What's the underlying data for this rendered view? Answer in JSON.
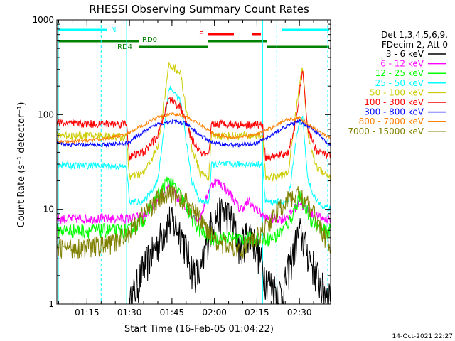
{
  "chart_data": {
    "type": "line",
    "title": "RHESSI Observing Summary Count Rates",
    "xlabel": "Start Time (16-Feb-05 01:04:22)",
    "ylabel": "Count Rate (s⁻¹ detector⁻¹)",
    "yscale": "log",
    "ylim": [
      1,
      1000
    ],
    "xlim": [
      "01:04:22",
      "02:41:00"
    ],
    "x_ticks": [
      "01:15",
      "01:30",
      "01:45",
      "02:00",
      "02:15",
      "02:30"
    ],
    "y_ticks": [
      "1",
      "10",
      "100",
      "1000"
    ],
    "timestamp": "14-Oct-2021 22:27",
    "legend_header": [
      "Det 1,3,4,5,6,9,",
      "FDecim 2, Att 0"
    ],
    "legend_placement": "right",
    "flags": {
      "N_label": "N",
      "F_label": "F",
      "RD0_label": "RD0",
      "RD4_label": "RD4",
      "night_color": "#00ffff",
      "flare_color": "#ff0000",
      "decim_color": "#008000"
    },
    "series": [
      {
        "name": "3 - 6 keV",
        "color": "#000000",
        "x": [
          "01:04:22",
          "01:20",
          "01:25",
          "01:30",
          "01:35",
          "01:40",
          "01:44",
          "01:48",
          "01:52",
          "01:55",
          "01:58",
          "02:00",
          "02:03",
          "02:06",
          "02:09",
          "02:12",
          "02:15",
          "02:18",
          "02:21",
          "02:24",
          "02:27",
          "02:30",
          "02:34",
          "02:38",
          "02:41"
        ],
        "y": [
          null,
          null,
          null,
          1.0,
          2.5,
          4.5,
          8,
          6,
          2.5,
          2.0,
          6,
          8,
          10,
          8,
          4,
          6,
          4,
          2.0,
          1.5,
          1.3,
          3,
          6,
          3,
          1.5,
          1.3
        ]
      },
      {
        "name": "6 - 12 keV",
        "color": "#ff00ff",
        "x": [
          "01:04:22",
          "01:15",
          "01:25",
          "01:30",
          "01:35",
          "01:40",
          "01:44",
          "01:48",
          "01:52",
          "01:55",
          "01:58",
          "02:00",
          "02:03",
          "02:06",
          "02:09",
          "02:12",
          "02:15",
          "02:18",
          "02:21",
          "02:24",
          "02:27",
          "02:30",
          "02:34",
          "02:38",
          "02:41"
        ],
        "y": [
          8,
          8,
          8,
          8,
          8.5,
          12,
          18,
          12,
          9,
          8,
          16,
          20,
          18,
          14,
          10,
          12,
          10,
          8,
          8,
          8,
          9,
          12,
          9,
          8,
          8
        ]
      },
      {
        "name": "12 - 25 keV",
        "color": "#00ff00",
        "x": [
          "01:04:22",
          "01:15",
          "01:25",
          "01:30",
          "01:35",
          "01:40",
          "01:44",
          "01:48",
          "01:52",
          "01:55",
          "01:58",
          "02:00",
          "02:05",
          "02:10",
          "02:15",
          "02:18",
          "02:21",
          "02:24",
          "02:27",
          "02:30",
          "02:34",
          "02:38",
          "02:41"
        ],
        "y": [
          6,
          6,
          6,
          6,
          8,
          14,
          21,
          14,
          8,
          6,
          5,
          5,
          5,
          5,
          5,
          5,
          5,
          6,
          8,
          14,
          8,
          6,
          6
        ]
      },
      {
        "name": "25 - 50 keV",
        "color": "#00ffff",
        "x": [
          "01:04:22",
          "01:10",
          "01:20",
          "01:29",
          "01:30",
          "01:35",
          "01:40",
          "01:44",
          "01:48",
          "01:52",
          "01:55",
          "01:58",
          "01:59",
          "02:05",
          "02:12",
          "02:17",
          "02:18",
          "02:22",
          "02:26",
          "02:29",
          "02:31",
          "02:33",
          "02:36",
          "02:41"
        ],
        "y": [
          30,
          29,
          29,
          28,
          12,
          12,
          20,
          200,
          140,
          20,
          12,
          12,
          30,
          30,
          30,
          30,
          12,
          12,
          12,
          60,
          100,
          20,
          12,
          10
        ]
      },
      {
        "name": "50 - 100 keV",
        "color": "#cccc00",
        "x": [
          "01:04:22",
          "01:10",
          "01:20",
          "01:29",
          "01:30",
          "01:35",
          "01:40",
          "01:44",
          "01:48",
          "01:52",
          "01:55",
          "01:58",
          "01:59",
          "02:05",
          "02:12",
          "02:17",
          "02:18",
          "02:22",
          "02:26",
          "02:29",
          "02:31",
          "02:33",
          "02:36",
          "02:41"
        ],
        "y": [
          62,
          60,
          60,
          58,
          22,
          24,
          45,
          340,
          280,
          45,
          24,
          22,
          60,
          60,
          60,
          60,
          22,
          22,
          24,
          120,
          350,
          60,
          28,
          22
        ]
      },
      {
        "name": "100 - 300 keV",
        "color": "#ff0000",
        "x": [
          "01:04:22",
          "01:10",
          "01:20",
          "01:29",
          "01:30",
          "01:35",
          "01:40",
          "01:44",
          "01:48",
          "01:52",
          "01:55",
          "01:58",
          "01:59",
          "02:05",
          "02:12",
          "02:17",
          "02:18",
          "02:22",
          "02:26",
          "02:29",
          "02:31",
          "02:33",
          "02:36",
          "02:41"
        ],
        "y": [
          82,
          80,
          80,
          80,
          36,
          40,
          60,
          150,
          120,
          55,
          40,
          36,
          80,
          80,
          78,
          78,
          36,
          36,
          40,
          90,
          300,
          70,
          42,
          36
        ]
      },
      {
        "name": "300 - 800 keV",
        "color": "#0000ff",
        "x": [
          "01:04:22",
          "01:10",
          "01:20",
          "01:29",
          "01:30",
          "01:35",
          "01:40",
          "01:45",
          "01:50",
          "01:55",
          "02:00",
          "02:05",
          "02:10",
          "02:15",
          "02:20",
          "02:25",
          "02:30",
          "02:35",
          "02:41"
        ],
        "y": [
          50,
          48,
          48,
          50,
          52,
          65,
          80,
          85,
          80,
          60,
          50,
          48,
          48,
          50,
          60,
          75,
          85,
          70,
          46
        ]
      },
      {
        "name": "800 - 7000 keV",
        "color": "#ff8000",
        "x": [
          "01:04:22",
          "01:10",
          "01:20",
          "01:29",
          "01:35",
          "01:40",
          "01:45",
          "01:50",
          "01:55",
          "02:00",
          "02:05",
          "02:10",
          "02:15",
          "02:20",
          "02:25",
          "02:30",
          "02:35",
          "02:41"
        ],
        "y": [
          52,
          52,
          55,
          62,
          78,
          95,
          102,
          96,
          78,
          62,
          58,
          58,
          62,
          72,
          88,
          92,
          72,
          56
        ]
      },
      {
        "name": "7000 - 15000 keV",
        "color": "#808000",
        "x": [
          "01:04:22",
          "01:15",
          "01:25",
          "01:30",
          "01:35",
          "01:40",
          "01:45",
          "01:50",
          "01:55",
          "02:00",
          "02:05",
          "02:10",
          "02:15",
          "02:20",
          "02:25",
          "02:30",
          "02:35",
          "02:41"
        ],
        "y": [
          4,
          4,
          4.5,
          6,
          9,
          13,
          15,
          12,
          8,
          5,
          4,
          4,
          5,
          8,
          12,
          15,
          9,
          4
        ]
      }
    ]
  }
}
